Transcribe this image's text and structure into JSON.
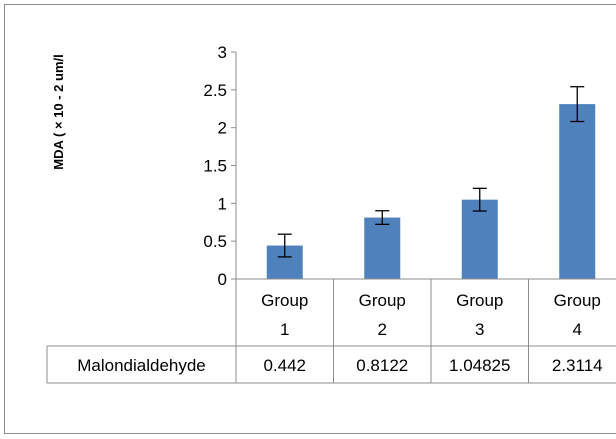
{
  "chart_data": {
    "type": "bar",
    "title": "",
    "xlabel": "",
    "ylabel": "MDA ( × 10 - 2 um/l",
    "categories": [
      "Group 1",
      "Group 2",
      "Group 3",
      "Group 4"
    ],
    "category_lines": [
      [
        "Group",
        "1"
      ],
      [
        "Group",
        "2"
      ],
      [
        "Group",
        "3"
      ],
      [
        "Group",
        "4"
      ]
    ],
    "series": [
      {
        "name": "Malondialdehyde",
        "values": [
          0.442,
          0.8122,
          1.04825,
          2.3114
        ],
        "value_labels": [
          "0.442",
          "0.8122",
          "1.04825",
          "2.3114"
        ],
        "error": [
          0.15,
          0.09,
          0.15,
          0.23
        ],
        "color": "#4f81bd"
      }
    ],
    "ylim": [
      0,
      3
    ],
    "yticks": [
      0,
      0.5,
      1,
      1.5,
      2,
      2.5,
      3
    ],
    "ytick_labels": [
      "0",
      "0.5",
      "1",
      "1.5",
      "2",
      "2.5",
      "3"
    ],
    "grid": false,
    "legend": "data-table"
  }
}
